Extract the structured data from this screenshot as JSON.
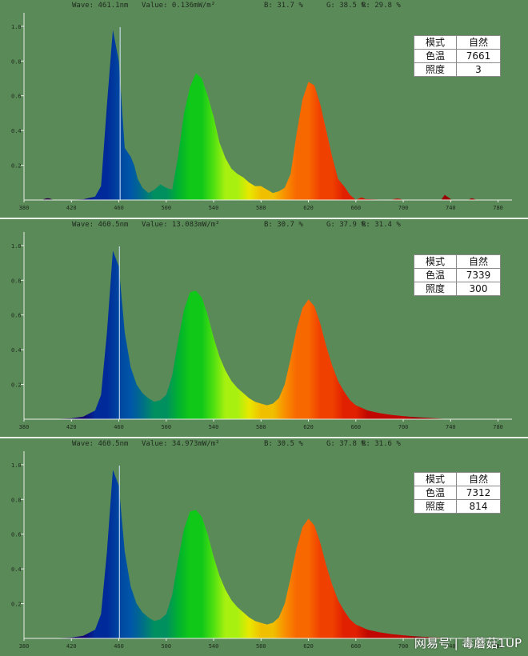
{
  "chart_data": [
    {
      "type": "area",
      "readout": {
        "wave": "Wave: 461.1nm",
        "value": "Value: 0.136mW/m²",
        "b": "B: 31.7 %",
        "g": "G: 38.5 %",
        "r": "R: 29.8 %"
      },
      "xticks": [
        "380",
        "420",
        "460",
        "500",
        "540",
        "580",
        "620",
        "660",
        "700",
        "740",
        "780"
      ],
      "yticks": [
        "0.2",
        "0.4",
        "0.6",
        "0.8",
        "1.0"
      ],
      "xlim": [
        380,
        785
      ],
      "ylim": [
        0,
        1.05
      ],
      "cursor_nm": 461.1,
      "x": [
        380,
        395,
        398,
        400,
        402,
        405,
        420,
        430,
        440,
        445,
        450,
        455,
        460,
        465,
        470,
        473,
        476,
        480,
        485,
        490,
        495,
        500,
        505,
        510,
        515,
        520,
        525,
        530,
        535,
        540,
        545,
        550,
        555,
        560,
        565,
        570,
        575,
        580,
        585,
        590,
        595,
        600,
        605,
        610,
        615,
        620,
        625,
        630,
        635,
        640,
        645,
        650,
        655,
        660,
        663,
        665,
        668,
        690,
        692,
        695,
        698,
        700,
        732,
        733,
        735,
        737,
        739,
        741,
        755,
        756,
        758,
        760,
        762,
        780
      ],
      "y": [
        0,
        0,
        0.008,
        0.01,
        0.008,
        0,
        0.002,
        0.004,
        0.02,
        0.08,
        0.55,
        0.98,
        0.8,
        0.3,
        0.25,
        0.2,
        0.12,
        0.07,
        0.04,
        0.06,
        0.09,
        0.07,
        0.06,
        0.25,
        0.5,
        0.65,
        0.73,
        0.7,
        0.6,
        0.48,
        0.33,
        0.24,
        0.18,
        0.15,
        0.13,
        0.1,
        0.08,
        0.08,
        0.06,
        0.04,
        0.05,
        0.07,
        0.15,
        0.38,
        0.58,
        0.68,
        0.66,
        0.55,
        0.4,
        0.25,
        0.12,
        0.08,
        0.03,
        0,
        0.01,
        0.015,
        0.005,
        0,
        0.005,
        0.008,
        0.005,
        0,
        0,
        0.01,
        0.03,
        0.02,
        0.01,
        0,
        0,
        0.005,
        0.01,
        0.005,
        0,
        0
      ],
      "table": {
        "mode_label": "模式",
        "mode_value": "自然",
        "cct_label": "色温",
        "cct_value": "7661",
        "lux_label": "照度",
        "lux_value": "3"
      }
    },
    {
      "type": "area",
      "readout": {
        "wave": "Wave: 460.5nm",
        "value": "Value: 13.083mW/m²",
        "b": "B: 30.7 %",
        "g": "G: 37.9 %",
        "r": "R: 31.4 %"
      },
      "xticks": [
        "380",
        "420",
        "460",
        "500",
        "540",
        "580",
        "620",
        "660",
        "700",
        "740",
        "780"
      ],
      "yticks": [
        "0.2",
        "0.4",
        "0.6",
        "0.8",
        "1.0"
      ],
      "xlim": [
        380,
        785
      ],
      "ylim": [
        0,
        1.05
      ],
      "cursor_nm": 460.5,
      "x": [
        380,
        400,
        420,
        430,
        440,
        445,
        450,
        455,
        460,
        465,
        470,
        475,
        480,
        485,
        490,
        495,
        500,
        505,
        510,
        515,
        520,
        525,
        530,
        535,
        540,
        545,
        550,
        555,
        560,
        565,
        570,
        575,
        580,
        585,
        590,
        595,
        600,
        605,
        610,
        615,
        620,
        625,
        630,
        635,
        640,
        645,
        650,
        655,
        660,
        670,
        680,
        690,
        700,
        710,
        720,
        730,
        740,
        780
      ],
      "y": [
        0,
        0,
        0.005,
        0.015,
        0.05,
        0.14,
        0.5,
        0.97,
        0.88,
        0.5,
        0.3,
        0.2,
        0.15,
        0.12,
        0.1,
        0.11,
        0.14,
        0.25,
        0.45,
        0.63,
        0.73,
        0.74,
        0.7,
        0.6,
        0.47,
        0.36,
        0.28,
        0.22,
        0.18,
        0.15,
        0.12,
        0.1,
        0.09,
        0.08,
        0.09,
        0.12,
        0.2,
        0.35,
        0.52,
        0.64,
        0.69,
        0.65,
        0.55,
        0.42,
        0.31,
        0.22,
        0.16,
        0.11,
        0.08,
        0.05,
        0.035,
        0.025,
        0.018,
        0.012,
        0.008,
        0.004,
        0,
        0
      ]
    },
    {
      "type": "area",
      "readout": {
        "wave": "Wave: 460.5nm",
        "value": "Value: 34.973mW/m²",
        "b": "B: 30.5 %",
        "g": "G: 37.8 %",
        "r": "R: 31.6 %"
      },
      "xticks": [
        "380",
        "420",
        "460",
        "500",
        "540",
        "580",
        "620",
        "660",
        "700",
        "740",
        "780"
      ],
      "yticks": [
        "0.2",
        "0.4",
        "0.6",
        "0.8",
        "1.0"
      ],
      "xlim": [
        380,
        785
      ],
      "ylim": [
        0,
        1.05
      ],
      "cursor_nm": 460.5,
      "x": [
        380,
        400,
        420,
        430,
        440,
        445,
        450,
        455,
        460,
        465,
        470,
        475,
        480,
        485,
        490,
        495,
        500,
        505,
        510,
        515,
        520,
        525,
        530,
        535,
        540,
        545,
        550,
        555,
        560,
        565,
        570,
        575,
        580,
        585,
        590,
        595,
        600,
        605,
        610,
        615,
        620,
        625,
        630,
        635,
        640,
        645,
        650,
        655,
        660,
        670,
        680,
        690,
        700,
        710,
        720,
        730,
        740,
        780
      ],
      "y": [
        0,
        0,
        0.005,
        0.015,
        0.05,
        0.14,
        0.5,
        0.97,
        0.88,
        0.5,
        0.3,
        0.2,
        0.15,
        0.12,
        0.1,
        0.11,
        0.14,
        0.25,
        0.45,
        0.63,
        0.73,
        0.74,
        0.7,
        0.6,
        0.47,
        0.36,
        0.28,
        0.22,
        0.18,
        0.15,
        0.12,
        0.1,
        0.09,
        0.08,
        0.09,
        0.12,
        0.2,
        0.35,
        0.52,
        0.64,
        0.69,
        0.65,
        0.55,
        0.42,
        0.31,
        0.22,
        0.16,
        0.11,
        0.08,
        0.05,
        0.035,
        0.025,
        0.018,
        0.012,
        0.008,
        0.004,
        0,
        0
      ]
    }
  ],
  "tables": [
    {
      "mode_label": "模式",
      "mode_value": "自然",
      "cct_label": "色温",
      "cct_value": "7661",
      "lux_label": "照度",
      "lux_value": "3"
    },
    {
      "mode_label": "模式",
      "mode_value": "自然",
      "cct_label": "色温",
      "cct_value": "7339",
      "lux_label": "照度",
      "lux_value": "300"
    },
    {
      "mode_label": "模式",
      "mode_value": "自然",
      "cct_label": "色温",
      "cct_value": "7312",
      "lux_label": "照度",
      "lux_value": "814"
    }
  ],
  "watermark": "网易号 | 毒蘑菇1UP",
  "colors": {
    "background": "#5a8a58",
    "axis": "#e8efe6",
    "grid_text": "#1f2a1e"
  }
}
